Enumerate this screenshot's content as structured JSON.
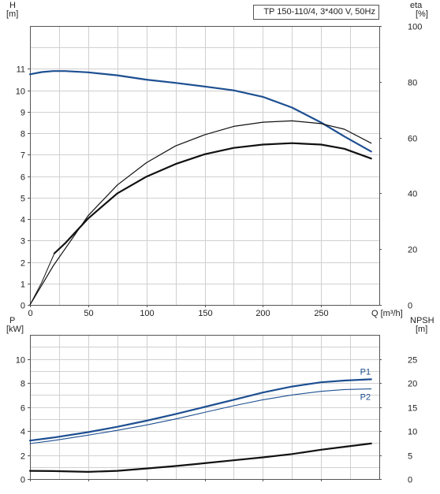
{
  "chart_data": [
    {
      "type": "line",
      "title": "TP 150-110/4, 3*400 V, 50Hz",
      "left_axis": {
        "label": "H",
        "unit": "[m]",
        "range": [
          0,
          13
        ],
        "ticks": [
          0,
          1,
          2,
          3,
          4,
          5,
          6,
          7,
          8,
          9,
          10,
          11
        ]
      },
      "right_axis": {
        "label": "eta",
        "unit": "[%]",
        "range": [
          0,
          100
        ],
        "ticks": [
          0,
          20,
          40,
          60,
          80,
          100
        ]
      },
      "x_axis": {
        "label": "Q [m³/h]",
        "range": [
          0,
          300
        ],
        "ticks": [
          0,
          50,
          100,
          150,
          200,
          250
        ]
      },
      "grid": true,
      "series": [
        {
          "id": "H",
          "axis": "left",
          "color": "#1d4f91",
          "width": 2.2,
          "x": [
            0,
            10,
            20,
            30,
            50,
            75,
            100,
            125,
            150,
            175,
            200,
            225,
            250,
            270,
            293
          ],
          "y": [
            10.75,
            10.85,
            10.9,
            10.9,
            10.84,
            10.7,
            10.5,
            10.35,
            10.18,
            10.0,
            9.7,
            9.2,
            8.5,
            7.85,
            7.15
          ]
        },
        {
          "id": "H-thin",
          "axis": "left",
          "color": "#1d4f91",
          "width": 0.9,
          "x": [
            0,
            10,
            20
          ],
          "y": [
            10.75,
            10.85,
            10.9
          ]
        },
        {
          "id": "eta-thin",
          "axis": "right",
          "color": "#111111",
          "width": 1.2,
          "x": [
            0,
            10,
            20,
            30,
            50,
            75,
            100,
            125,
            150,
            175,
            200,
            225,
            250,
            270,
            293
          ],
          "y": [
            0,
            7,
            14,
            20,
            32,
            43,
            51,
            57,
            61,
            64,
            65.5,
            66,
            65,
            63,
            58
          ]
        },
        {
          "id": "eta-thick",
          "axis": "right",
          "color": "#111111",
          "width": 2.2,
          "x": [
            21,
            30,
            50,
            75,
            100,
            125,
            150,
            175,
            200,
            225,
            250,
            270,
            293
          ],
          "y": [
            18.5,
            22,
            31,
            40,
            46,
            50.5,
            54,
            56.3,
            57.5,
            58,
            57.5,
            56,
            52.5
          ]
        },
        {
          "id": "eta-start",
          "axis": "right",
          "color": "#111111",
          "width": 1.0,
          "x": [
            0,
            10,
            21
          ],
          "y": [
            0,
            8,
            18.5
          ]
        }
      ]
    },
    {
      "type": "line",
      "left_axis": {
        "label": "P",
        "unit": "[kW]",
        "range": [
          0,
          12
        ],
        "ticks": [
          0,
          2,
          4,
          6,
          8,
          10
        ]
      },
      "right_axis": {
        "label": "NPSH",
        "unit": "[m]",
        "range": [
          0,
          30
        ],
        "ticks": [
          0,
          5,
          10,
          15,
          20,
          25
        ]
      },
      "x_axis": {
        "range": [
          0,
          300
        ],
        "ticks": [
          0,
          50,
          100,
          150,
          200,
          250
        ]
      },
      "grid": true,
      "series": [
        {
          "id": "P1",
          "name": "P1",
          "axis": "left",
          "color": "#1d4f91",
          "width": 2.2,
          "x": [
            0,
            20,
            50,
            75,
            100,
            125,
            150,
            175,
            200,
            225,
            250,
            270,
            293
          ],
          "y": [
            3.2,
            3.45,
            3.9,
            4.35,
            4.85,
            5.4,
            6.0,
            6.6,
            7.2,
            7.7,
            8.05,
            8.2,
            8.3
          ]
        },
        {
          "id": "P2",
          "name": "P2",
          "axis": "left",
          "color": "#1d4f91",
          "width": 1.1,
          "x": [
            0,
            20,
            50,
            75,
            100,
            125,
            150,
            175,
            200,
            225,
            250,
            270,
            293
          ],
          "y": [
            2.95,
            3.2,
            3.65,
            4.05,
            4.5,
            5.0,
            5.55,
            6.1,
            6.6,
            7.0,
            7.3,
            7.45,
            7.5
          ]
        },
        {
          "id": "NPSH",
          "axis": "right",
          "color": "#111111",
          "width": 2.2,
          "x": [
            0,
            20,
            50,
            75,
            100,
            125,
            150,
            175,
            200,
            225,
            250,
            270,
            293
          ],
          "y": [
            1.7,
            1.65,
            1.5,
            1.7,
            2.2,
            2.7,
            3.3,
            3.9,
            4.5,
            5.2,
            6.1,
            6.7,
            7.4
          ]
        }
      ]
    }
  ]
}
